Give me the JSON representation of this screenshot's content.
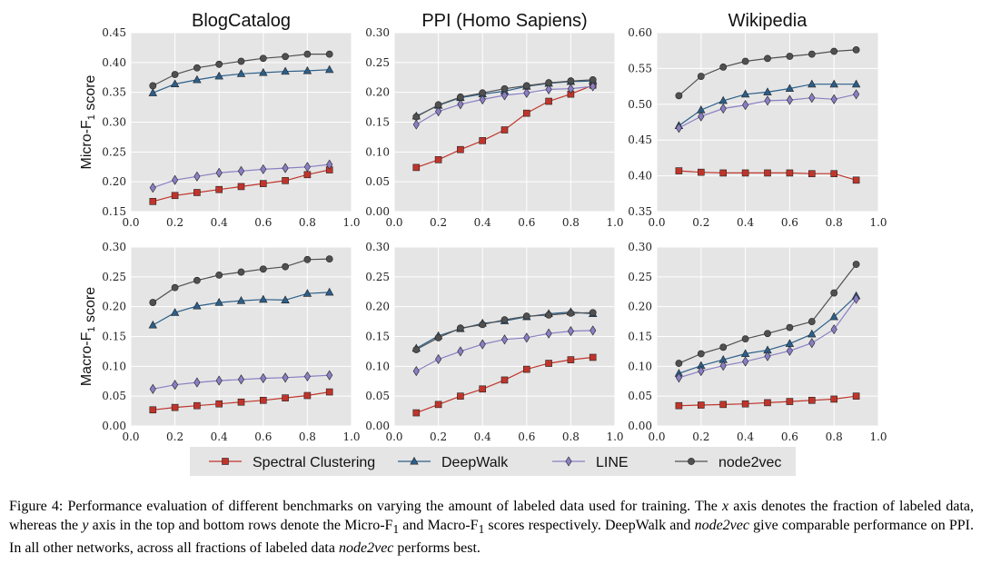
{
  "figure": {
    "legend": [
      "Spectral Clustering",
      "DeepWalk",
      "LINE",
      "node2vec"
    ],
    "caption": {
      "p1": "Figure 4: Performance evaluation of different benchmarks on varying the amount of labeled data used for training. The ",
      "x": "x",
      "p2": " axis denotes the fraction of labeled data, whereas the ",
      "y": "y",
      "p3": " axis in the top and bottom rows denote the Micro-F",
      "sub1": "1",
      "p4": " and Macro-F",
      "sub2": "1",
      "p5": " scores respectively. DeepWalk and ",
      "n1": "node2vec",
      "p6": " give comparable performance on PPI. In all other networks, across all fractions of labeled data ",
      "n2": "node2vec",
      "p7": " performs best."
    }
  },
  "chart_data": [
    {
      "type": "line",
      "title": "BlogCatalog",
      "ylabel": "Micro-F1 score",
      "x": [
        0.1,
        0.2,
        0.3,
        0.4,
        0.5,
        0.6,
        0.7,
        0.8,
        0.9
      ],
      "xlim": [
        0.0,
        1.0
      ],
      "ylim": [
        0.15,
        0.45
      ],
      "xticks": [
        "0.0",
        "0.2",
        "0.4",
        "0.6",
        "0.8",
        "1.0"
      ],
      "yticks": [
        "0.15",
        "0.20",
        "0.25",
        "0.30",
        "0.35",
        "0.40",
        "0.45"
      ],
      "series": [
        {
          "name": "Spectral Clustering",
          "values": [
            0.167,
            0.177,
            0.182,
            0.187,
            0.192,
            0.197,
            0.202,
            0.212,
            0.22
          ]
        },
        {
          "name": "DeepWalk",
          "values": [
            0.349,
            0.364,
            0.371,
            0.377,
            0.381,
            0.383,
            0.385,
            0.386,
            0.388
          ]
        },
        {
          "name": "LINE",
          "values": [
            0.19,
            0.203,
            0.209,
            0.215,
            0.218,
            0.221,
            0.223,
            0.225,
            0.229
          ]
        },
        {
          "name": "node2vec",
          "values": [
            0.361,
            0.38,
            0.391,
            0.397,
            0.402,
            0.407,
            0.41,
            0.414,
            0.414
          ]
        }
      ]
    },
    {
      "type": "line",
      "title": "PPI (Homo Sapiens)",
      "ylabel": "",
      "x": [
        0.1,
        0.2,
        0.3,
        0.4,
        0.5,
        0.6,
        0.7,
        0.8,
        0.9
      ],
      "xlim": [
        0.0,
        1.0
      ],
      "ylim": [
        0.0,
        0.3
      ],
      "xticks": [
        "0.0",
        "0.2",
        "0.4",
        "0.6",
        "0.8",
        "1.0"
      ],
      "yticks": [
        "0.00",
        "0.05",
        "0.10",
        "0.15",
        "0.20",
        "0.25",
        "0.30"
      ],
      "series": [
        {
          "name": "Spectral Clustering",
          "values": [
            0.074,
            0.087,
            0.104,
            0.119,
            0.137,
            0.165,
            0.185,
            0.197,
            0.212
          ]
        },
        {
          "name": "DeepWalk",
          "values": [
            0.16,
            0.178,
            0.191,
            0.197,
            0.202,
            0.21,
            0.215,
            0.218,
            0.219
          ]
        },
        {
          "name": "LINE",
          "values": [
            0.146,
            0.168,
            0.18,
            0.188,
            0.195,
            0.199,
            0.205,
            0.206,
            0.21
          ]
        },
        {
          "name": "node2vec",
          "values": [
            0.159,
            0.179,
            0.192,
            0.199,
            0.206,
            0.211,
            0.216,
            0.219,
            0.221
          ]
        }
      ]
    },
    {
      "type": "line",
      "title": "Wikipedia",
      "ylabel": "",
      "x": [
        0.1,
        0.2,
        0.3,
        0.4,
        0.5,
        0.6,
        0.7,
        0.8,
        0.9
      ],
      "xlim": [
        0.0,
        1.0
      ],
      "ylim": [
        0.35,
        0.6
      ],
      "xticks": [
        "0.0",
        "0.2",
        "0.4",
        "0.6",
        "0.8",
        "1.0"
      ],
      "yticks": [
        "0.35",
        "0.40",
        "0.45",
        "0.50",
        "0.55",
        "0.60"
      ],
      "series": [
        {
          "name": "Spectral Clustering",
          "values": [
            0.407,
            0.405,
            0.404,
            0.404,
            0.404,
            0.404,
            0.403,
            0.403,
            0.394
          ]
        },
        {
          "name": "DeepWalk",
          "values": [
            0.47,
            0.492,
            0.505,
            0.514,
            0.517,
            0.522,
            0.528,
            0.528,
            0.528
          ]
        },
        {
          "name": "LINE",
          "values": [
            0.467,
            0.483,
            0.494,
            0.499,
            0.505,
            0.506,
            0.509,
            0.507,
            0.514
          ]
        },
        {
          "name": "node2vec",
          "values": [
            0.512,
            0.539,
            0.552,
            0.56,
            0.564,
            0.567,
            0.57,
            0.574,
            0.576
          ]
        }
      ]
    },
    {
      "type": "line",
      "title": "",
      "ylabel": "Macro-F1 score",
      "x": [
        0.1,
        0.2,
        0.3,
        0.4,
        0.5,
        0.6,
        0.7,
        0.8,
        0.9
      ],
      "xlim": [
        0.0,
        1.0
      ],
      "ylim": [
        0.0,
        0.3
      ],
      "xticks": [
        "0.0",
        "0.2",
        "0.4",
        "0.6",
        "0.8",
        "1.0"
      ],
      "yticks": [
        "0.00",
        "0.05",
        "0.10",
        "0.15",
        "0.20",
        "0.25",
        "0.30"
      ],
      "series": [
        {
          "name": "Spectral Clustering",
          "values": [
            0.027,
            0.031,
            0.034,
            0.037,
            0.04,
            0.043,
            0.047,
            0.051,
            0.057
          ]
        },
        {
          "name": "DeepWalk",
          "values": [
            0.169,
            0.19,
            0.201,
            0.207,
            0.21,
            0.212,
            0.211,
            0.222,
            0.224
          ]
        },
        {
          "name": "LINE",
          "values": [
            0.062,
            0.069,
            0.073,
            0.076,
            0.078,
            0.08,
            0.081,
            0.083,
            0.085
          ]
        },
        {
          "name": "node2vec",
          "values": [
            0.207,
            0.232,
            0.244,
            0.253,
            0.258,
            0.263,
            0.267,
            0.279,
            0.28
          ]
        }
      ]
    },
    {
      "type": "line",
      "title": "",
      "ylabel": "",
      "x": [
        0.1,
        0.2,
        0.3,
        0.4,
        0.5,
        0.6,
        0.7,
        0.8,
        0.9
      ],
      "xlim": [
        0.0,
        1.0
      ],
      "ylim": [
        0.0,
        0.3
      ],
      "xticks": [
        "0.0",
        "0.2",
        "0.4",
        "0.6",
        "0.8",
        "1.0"
      ],
      "yticks": [
        "0.00",
        "0.05",
        "0.10",
        "0.15",
        "0.20",
        "0.25",
        "0.30"
      ],
      "series": [
        {
          "name": "Spectral Clustering",
          "values": [
            0.022,
            0.036,
            0.05,
            0.062,
            0.077,
            0.095,
            0.105,
            0.111,
            0.115
          ]
        },
        {
          "name": "DeepWalk",
          "values": [
            0.13,
            0.151,
            0.163,
            0.172,
            0.176,
            0.183,
            0.188,
            0.191,
            0.188
          ]
        },
        {
          "name": "LINE",
          "values": [
            0.092,
            0.112,
            0.125,
            0.137,
            0.145,
            0.148,
            0.155,
            0.159,
            0.16
          ]
        },
        {
          "name": "node2vec",
          "values": [
            0.128,
            0.148,
            0.164,
            0.17,
            0.178,
            0.184,
            0.186,
            0.189,
            0.19
          ]
        }
      ]
    },
    {
      "type": "line",
      "title": "",
      "ylabel": "",
      "x": [
        0.1,
        0.2,
        0.3,
        0.4,
        0.5,
        0.6,
        0.7,
        0.8,
        0.9
      ],
      "xlim": [
        0.0,
        1.0
      ],
      "ylim": [
        0.0,
        0.3
      ],
      "xticks": [
        "0.0",
        "0.2",
        "0.4",
        "0.6",
        "0.8",
        "1.0"
      ],
      "yticks": [
        "0.00",
        "0.05",
        "0.10",
        "0.15",
        "0.20",
        "0.25",
        "0.30"
      ],
      "series": [
        {
          "name": "Spectral Clustering",
          "values": [
            0.034,
            0.035,
            0.036,
            0.037,
            0.039,
            0.041,
            0.043,
            0.045,
            0.05
          ]
        },
        {
          "name": "DeepWalk",
          "values": [
            0.088,
            0.101,
            0.111,
            0.121,
            0.127,
            0.138,
            0.154,
            0.183,
            0.218
          ]
        },
        {
          "name": "LINE",
          "values": [
            0.081,
            0.092,
            0.101,
            0.108,
            0.117,
            0.126,
            0.139,
            0.162,
            0.213
          ]
        },
        {
          "name": "node2vec",
          "values": [
            0.105,
            0.121,
            0.132,
            0.146,
            0.155,
            0.165,
            0.175,
            0.223,
            0.271
          ]
        }
      ]
    }
  ]
}
